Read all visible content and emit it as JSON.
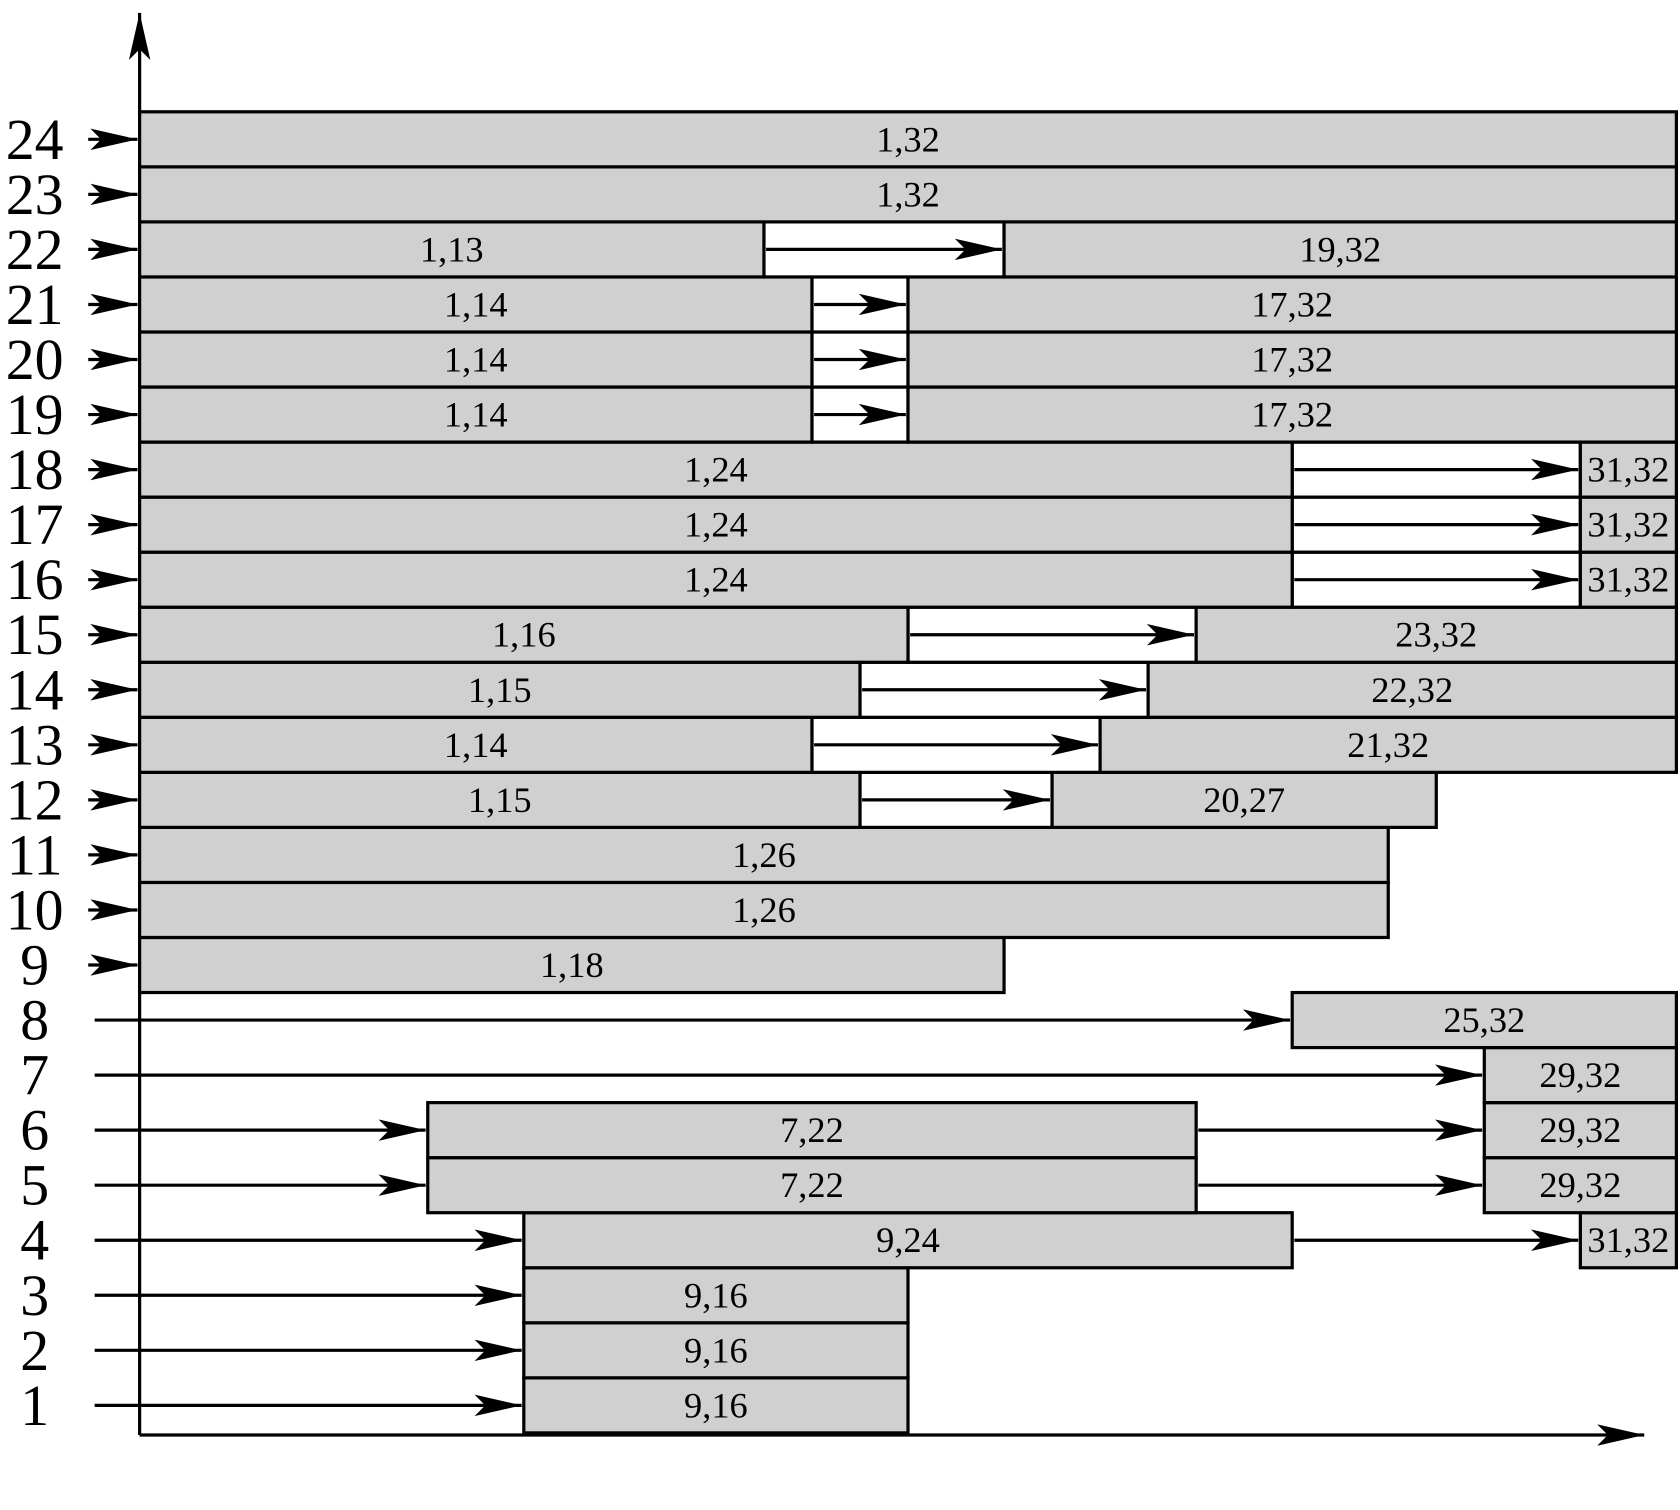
{
  "rows": [
    {
      "label": "1",
      "segments": [
        "9,16"
      ]
    },
    {
      "label": "2",
      "segments": [
        "9,16"
      ]
    },
    {
      "label": "3",
      "segments": [
        "9,16"
      ]
    },
    {
      "label": "4",
      "segments": [
        "9,24",
        "31,32"
      ]
    },
    {
      "label": "5",
      "segments": [
        "7,22",
        "29,32"
      ]
    },
    {
      "label": "6",
      "segments": [
        "7,22",
        "29,32"
      ]
    },
    {
      "label": "7",
      "segments": [
        "29,32"
      ]
    },
    {
      "label": "8",
      "segments": [
        "25,32"
      ]
    },
    {
      "label": "9",
      "segments": [
        "1,18"
      ]
    },
    {
      "label": "10",
      "segments": [
        "1,26"
      ]
    },
    {
      "label": "11",
      "segments": [
        "1,26"
      ]
    },
    {
      "label": "12",
      "segments": [
        "1,15",
        "20,27"
      ]
    },
    {
      "label": "13",
      "segments": [
        "1,14",
        "21,32"
      ]
    },
    {
      "label": "14",
      "segments": [
        "1,15",
        "22,32"
      ]
    },
    {
      "label": "15",
      "segments": [
        "1,16",
        "23,32"
      ]
    },
    {
      "label": "16",
      "segments": [
        "1,24",
        "31,32"
      ]
    },
    {
      "label": "17",
      "segments": [
        "1,24",
        "31,32"
      ]
    },
    {
      "label": "18",
      "segments": [
        "1,24",
        "31,32"
      ]
    },
    {
      "label": "19",
      "segments": [
        "1,14",
        "17,32"
      ]
    },
    {
      "label": "20",
      "segments": [
        "1,14",
        "17,32"
      ]
    },
    {
      "label": "21",
      "segments": [
        "1,14",
        "17,32"
      ]
    },
    {
      "label": "22",
      "segments": [
        "1,13",
        "19,32"
      ]
    },
    {
      "label": "23",
      "segments": [
        "1,32"
      ]
    },
    {
      "label": "24",
      "segments": [
        "1,32"
      ]
    }
  ]
}
